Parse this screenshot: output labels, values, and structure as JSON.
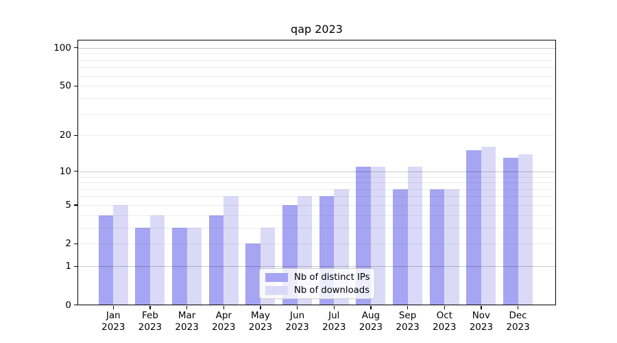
{
  "chart_data": {
    "type": "bar",
    "title": "qap 2023",
    "y_axis": {
      "scale": "log1p",
      "ylim": [
        0,
        116
      ],
      "tick_values": [
        100,
        50,
        20,
        10,
        5,
        2,
        1,
        0
      ],
      "tick_labels": [
        "100",
        "50",
        "20",
        "10",
        "5",
        "2",
        "1",
        "0"
      ],
      "major_grid": [
        1,
        10,
        100
      ],
      "minor_grid": [
        2,
        3,
        4,
        5,
        6,
        7,
        8,
        9,
        20,
        30,
        40,
        50,
        60,
        70,
        80,
        90
      ]
    },
    "x_axis": {
      "categories": [
        "Jan",
        "Feb",
        "Mar",
        "Apr",
        "May",
        "Jun",
        "Jul",
        "Aug",
        "Sep",
        "Oct",
        "Nov",
        "Dec"
      ],
      "year": "2023"
    },
    "series": [
      {
        "name": "Nb of distinct IPs",
        "color": "#a5a5f3",
        "values": [
          4,
          3,
          3,
          4,
          2,
          5,
          6,
          11,
          7,
          7,
          15,
          13
        ]
      },
      {
        "name": "Nb of downloads",
        "color": "#dadaf8",
        "values": [
          5,
          4,
          3,
          6,
          3,
          6,
          7,
          11,
          11,
          7,
          16,
          14
        ]
      }
    ],
    "legend": {
      "position": "inside-bottom-center"
    }
  },
  "colors": {
    "background": "#ffffff",
    "spine": "#000000",
    "grid_major": "#c6c6c6",
    "grid_minor": "#ededed"
  }
}
